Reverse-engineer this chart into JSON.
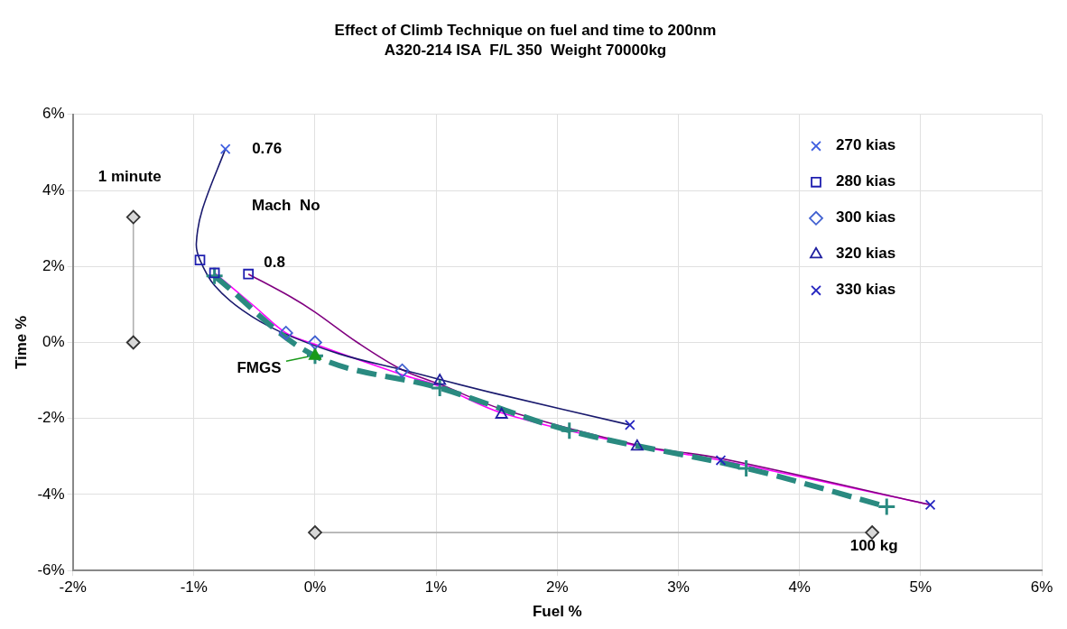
{
  "chart_data": {
    "type": "scatter",
    "title": "Effect of Climb Technique on fuel and time to 200nm",
    "subtitle": "A320-214 ISA  F/L 350  Weight 70000kg",
    "xlabel": "Fuel %",
    "ylabel": "Time %",
    "xlim": [
      -2,
      6
    ],
    "xticks": [
      {
        "value": -2,
        "label": "-2%"
      },
      {
        "value": -1,
        "label": "-1%"
      },
      {
        "value": 0,
        "label": "0%"
      },
      {
        "value": 1,
        "label": "1%"
      },
      {
        "value": 2,
        "label": "2%"
      },
      {
        "value": 3,
        "label": "3%"
      },
      {
        "value": 4,
        "label": "4%"
      },
      {
        "value": 5,
        "label": "5%"
      },
      {
        "value": 6,
        "label": "6%"
      }
    ],
    "ylim": [
      -6,
      6
    ],
    "yticks": [
      {
        "value": -6,
        "label": "-6%"
      },
      {
        "value": -4,
        "label": "-4%"
      },
      {
        "value": -2,
        "label": "-2%"
      },
      {
        "value": 0,
        "label": "0%"
      },
      {
        "value": 2,
        "label": "2%"
      },
      {
        "value": 4,
        "label": "4%"
      },
      {
        "value": 6,
        "label": "6%"
      }
    ],
    "grid": true,
    "legend": "top right",
    "series": [
      {
        "type": "line",
        "color": "#2a8a80",
        "line_style": "dashed",
        "marker": "plus",
        "x": [
          -0.83,
          0,
          1.03,
          2.1,
          3.56,
          4.72
        ],
        "values": [
          1.75,
          -0.35,
          -1.2,
          -2.32,
          -3.31,
          -4.32
        ]
      },
      {
        "type": "line",
        "color": "#1a1a6e",
        "marker": "none",
        "x": [
          -0.74,
          -0.93,
          -0.98,
          -0.95,
          -0.83,
          -0.6,
          -0.3,
          0.2,
          0.72,
          1.5,
          2.6
        ],
        "values": [
          5.09,
          3.5,
          2.6,
          2.17,
          1.5,
          0.85,
          0.3,
          -0.3,
          -0.72,
          -1.35,
          -2.17
        ]
      },
      {
        "type": "line",
        "color": "#800080",
        "marker": "none",
        "x": [
          -0.55,
          -0.2,
          0,
          0.35,
          0.72,
          1.03,
          1.54,
          2.66,
          3.35,
          5.08
        ],
        "values": [
          1.8,
          1.2,
          0.8,
          0,
          -0.72,
          -1.1,
          -1.75,
          -2.7,
          -3.05,
          -4.27
        ]
      },
      {
        "type": "line",
        "color": "#ff00ff",
        "marker": "none",
        "x": [
          -0.83,
          -0.5,
          -0.24,
          0,
          0.72,
          1.03,
          1.54,
          2.66,
          3.35,
          5.08
        ],
        "values": [
          1.83,
          0.95,
          0.25,
          -0.05,
          -0.85,
          -1.15,
          -1.85,
          -2.72,
          -3.1,
          -4.27
        ]
      },
      {
        "type": "line",
        "color": "#b0b0b0",
        "marker": "diamond",
        "x": [
          -1.5,
          -1.5
        ],
        "values": [
          0,
          3.3
        ]
      },
      {
        "type": "line",
        "color": "#b0b0b0",
        "marker": "diamond",
        "x": [
          0,
          4.6
        ],
        "values": [
          -5,
          -5
        ]
      },
      {
        "type": "scatter",
        "color": "#1a9a1a",
        "marker": "triangle",
        "x": [
          0
        ],
        "values": [
          -0.35
        ]
      },
      {
        "name": "270 kias",
        "color": "#4060e0",
        "marker": "cross",
        "x": [
          -0.74
        ],
        "values": [
          5.09
        ]
      },
      {
        "name": "280 kias",
        "color": "#1f1fb0",
        "marker": "square",
        "x": [
          -0.95,
          -0.83,
          -0.55
        ],
        "values": [
          2.17,
          1.83,
          1.8
        ]
      },
      {
        "name": "300 kias",
        "color": "#4060d0",
        "marker": "diamond",
        "x": [
          -0.24,
          0,
          0.72
        ],
        "values": [
          0.25,
          0,
          -0.74
        ]
      },
      {
        "name": "320 kias",
        "color": "#2020a0",
        "marker": "triangle",
        "x": [
          1.03,
          1.54,
          2.66
        ],
        "values": [
          -1.01,
          -1.9,
          -2.74
        ]
      },
      {
        "name": "330 kias",
        "color": "#2525c0",
        "marker": "cross",
        "x": [
          2.6,
          3.35,
          5.08
        ],
        "values": [
          -2.17,
          -3.1,
          -4.27
        ]
      }
    ],
    "annotations": [
      {
        "text": "0.76",
        "x": -0.74,
        "y": 5.09
      },
      "Mach  No",
      {
        "text": "0.8",
        "x": -0.55,
        "y": 1.8
      },
      {
        "text": "1 minute",
        "x": -1.5,
        "y": 3.3
      },
      {
        "text": "FMGS",
        "x": 0,
        "y": -0.35
      },
      {
        "text": "100 kg",
        "x": 4.6,
        "y": -5
      }
    ]
  }
}
